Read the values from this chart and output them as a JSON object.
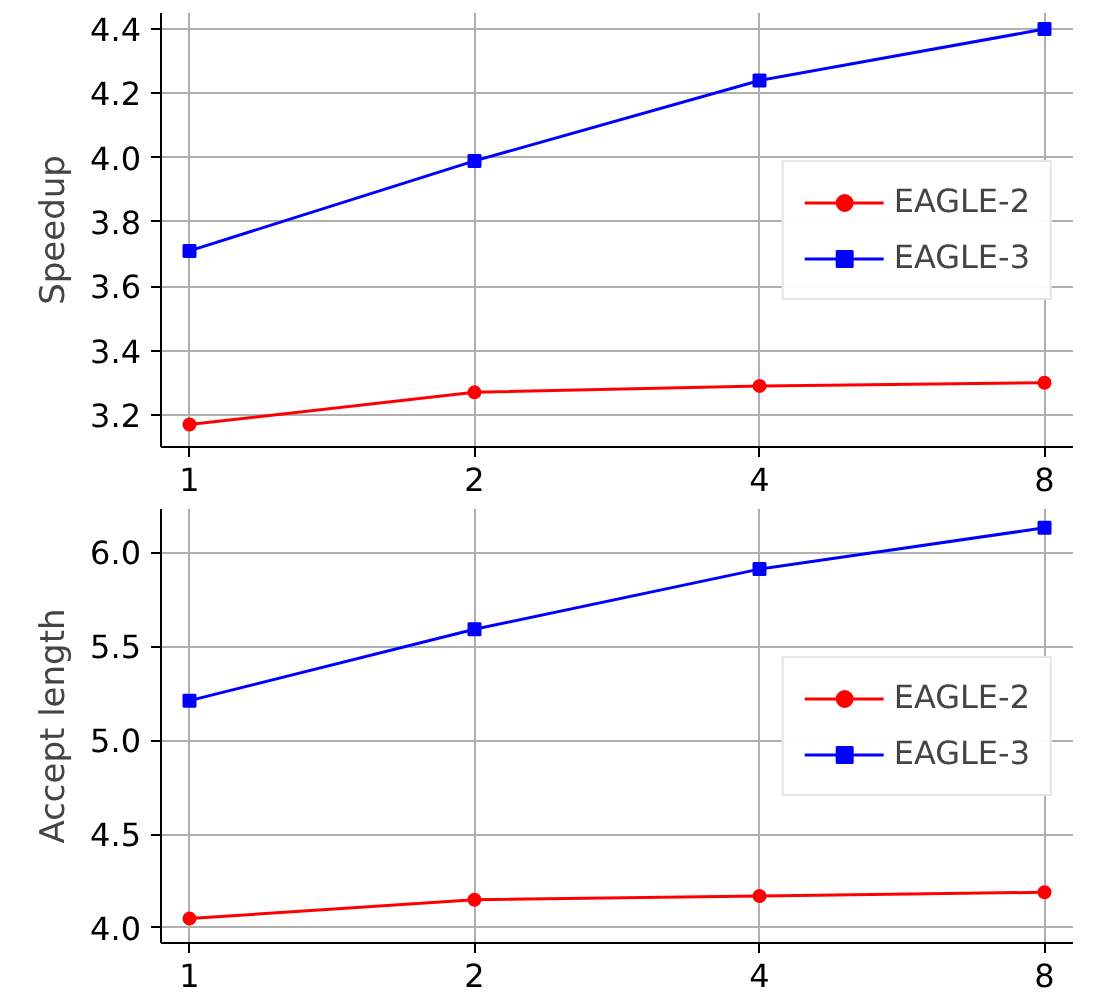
{
  "chart_data": [
    {
      "type": "line",
      "ylabel": "Speedup",
      "categories": [
        "1",
        "2",
        "4",
        "8"
      ],
      "ylim": [
        3.1,
        4.45
      ],
      "yticks": [
        3.2,
        3.4,
        3.6,
        3.8,
        {
          "value": 4,
          "label": "4.0"
        },
        4.2,
        4.4
      ],
      "grid": true,
      "legend": "right",
      "series": [
        {
          "name": "EAGLE-2",
          "color": "#ff0000",
          "marker": "circle",
          "values": [
            3.17,
            3.27,
            3.29,
            3.3
          ]
        },
        {
          "name": "EAGLE-3",
          "color": "#0000ff",
          "marker": "square",
          "values": [
            3.71,
            3.99,
            4.24,
            4.4
          ]
        }
      ]
    },
    {
      "type": "line",
      "ylabel": "Accept length",
      "categories": [
        "1",
        "2",
        "4",
        "8"
      ],
      "ylim": [
        3.92,
        6.23
      ],
      "yticks": [
        {
          "value": 4,
          "label": "4.0"
        },
        4.5,
        {
          "value": 5,
          "label": "5.0"
        },
        5.5,
        {
          "value": 6,
          "label": "6.0"
        }
      ],
      "grid": true,
      "legend": "right",
      "series": [
        {
          "name": "EAGLE-2",
          "color": "#ff0000",
          "marker": "circle",
          "values": [
            4.05,
            4.15,
            4.17,
            4.19
          ]
        },
        {
          "name": "EAGLE-3",
          "color": "#0000ff",
          "marker": "square",
          "values": [
            5.21,
            5.59,
            5.91,
            6.13
          ]
        }
      ]
    }
  ]
}
